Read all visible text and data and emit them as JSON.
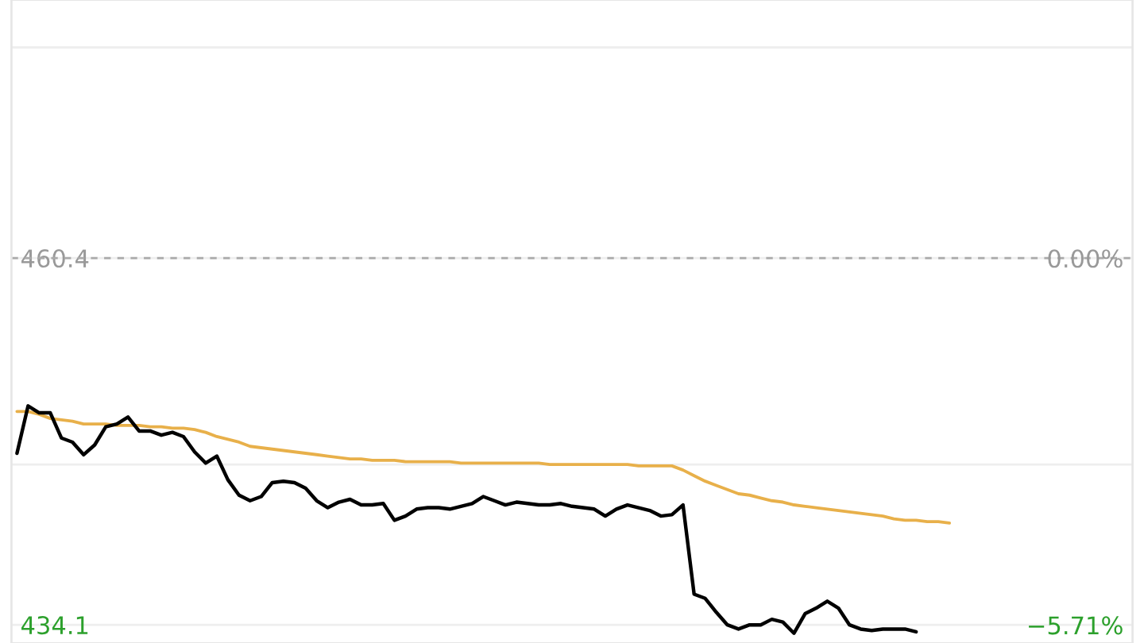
{
  "chart_data": {
    "type": "line",
    "categories": [
      null,
      null,
      null,
      null,
      null,
      null,
      null,
      null,
      null,
      null,
      null,
      null,
      null,
      null,
      null,
      null,
      null,
      null,
      null,
      null,
      null,
      null,
      null,
      null,
      null,
      null,
      null,
      null,
      null,
      null,
      null,
      null,
      null,
      null,
      null,
      null,
      null,
      null,
      null,
      null,
      null,
      null,
      null,
      null,
      null,
      null,
      null,
      null,
      null,
      null,
      null,
      null,
      null,
      null,
      null,
      null,
      null,
      null,
      null,
      null,
      null,
      null,
      null,
      null,
      null,
      null,
      null,
      null,
      null,
      null,
      null,
      null,
      null,
      null,
      null,
      null,
      null,
      null,
      null,
      null,
      null,
      null,
      null,
      null,
      null,
      null,
      null,
      null,
      null,
      null,
      null,
      null,
      null,
      null,
      null,
      null,
      null,
      null,
      null,
      null,
      null
    ],
    "ylim": [
      432.8,
      478.9
    ],
    "yticks": [
      {
        "value": 475.5,
        "label": null
      },
      460.4,
      {
        "value": 445.6,
        "label": null
      },
      434.1
    ],
    "y2lim": [
      -5.99,
      4.02
    ],
    "y2ticks": [
      {
        "value": 0,
        "label": "0.00%"
      },
      {
        "value": -5.71,
        "label": "−5.71%"
      }
    ],
    "grid": "y",
    "ref_lines": [
      {
        "axis": "y",
        "value": 460.4,
        "label": null,
        "color": "#aaaaaa",
        "line_style": "dashed"
      }
    ],
    "series": [
      {
        "color": "#000000",
        "values": [
          446.4,
          449.8,
          449.3,
          449.3,
          447.5,
          447.2,
          446.3,
          447.0,
          448.3,
          448.5,
          449.0,
          448.0,
          448.0,
          447.7,
          447.9,
          447.6,
          446.5,
          445.7,
          446.2,
          444.5,
          443.4,
          443.0,
          443.3,
          444.3,
          444.4,
          444.3,
          443.9,
          443.0,
          442.5,
          442.9,
          443.1,
          442.7,
          442.7,
          442.8,
          441.6,
          441.9,
          442.4,
          442.5,
          442.5,
          442.4,
          442.6,
          442.8,
          443.3,
          443.0,
          442.7,
          442.9,
          442.8,
          442.7,
          442.7,
          442.8,
          442.6,
          442.5,
          442.4,
          441.9,
          442.4,
          442.7,
          442.5,
          442.3,
          441.9,
          442.0,
          442.7,
          436.3,
          436.0,
          435.0,
          434.1,
          433.8,
          434.1,
          434.1,
          434.5,
          434.3,
          433.5,
          434.9,
          435.3,
          435.8,
          435.3,
          434.1,
          433.8,
          433.7,
          433.8,
          433.8,
          433.8,
          433.6,
          null,
          null,
          null,
          null,
          null,
          null,
          null,
          null,
          null,
          null,
          null,
          null,
          null,
          null,
          null,
          null,
          null,
          null,
          null
        ]
      },
      {
        "color": "#e8b04a",
        "values": [
          449.4,
          449.4,
          449.2,
          448.9,
          448.8,
          448.7,
          448.5,
          448.5,
          448.5,
          448.4,
          448.4,
          448.4,
          448.3,
          448.3,
          448.2,
          448.2,
          448.1,
          447.9,
          447.6,
          447.4,
          447.2,
          446.9,
          446.8,
          446.7,
          446.6,
          446.5,
          446.4,
          446.3,
          446.2,
          446.1,
          446.0,
          446.0,
          445.9,
          445.9,
          445.9,
          445.8,
          445.8,
          445.8,
          445.8,
          445.8,
          445.7,
          445.7,
          445.7,
          445.7,
          445.7,
          445.7,
          445.7,
          445.7,
          445.6,
          445.6,
          445.6,
          445.6,
          445.6,
          445.6,
          445.6,
          445.6,
          445.5,
          445.5,
          445.5,
          445.5,
          445.2,
          444.8,
          444.4,
          444.1,
          443.8,
          443.5,
          443.4,
          443.2,
          443.0,
          442.9,
          442.7,
          442.6,
          442.5,
          442.4,
          442.3,
          442.2,
          442.1,
          442.0,
          441.9,
          441.7,
          441.6,
          441.6,
          441.5,
          441.5,
          441.4,
          null,
          null,
          null,
          null,
          null,
          null,
          null,
          null,
          null,
          null,
          null,
          null,
          null,
          null,
          null,
          null
        ]
      }
    ]
  }
}
